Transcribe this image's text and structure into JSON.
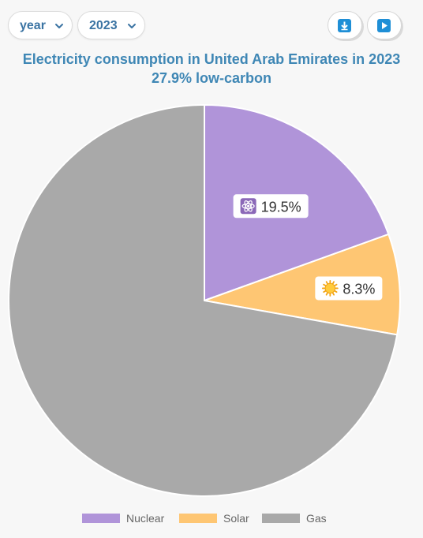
{
  "controls": {
    "dimension_select": "year",
    "year_select": "2023",
    "download_icon": "download-icon",
    "play_icon": "play-icon"
  },
  "chart_data": {
    "type": "pie",
    "title": "Electricity consumption in United Arab Emirates in 2023",
    "subtitle": "27.9% low-carbon",
    "slices": [
      {
        "name": "Nuclear",
        "value": 19.5,
        "label": "19.5%",
        "color": "#b094d9",
        "icon": "atom-icon"
      },
      {
        "name": "Solar",
        "value": 8.3,
        "label": "8.3%",
        "color": "#fec673",
        "icon": "sun-icon"
      },
      {
        "name": "Gas",
        "value": 72.2,
        "label": "",
        "color": "#a9a9a9",
        "icon": ""
      }
    ],
    "legend": {
      "position": "bottom"
    }
  }
}
